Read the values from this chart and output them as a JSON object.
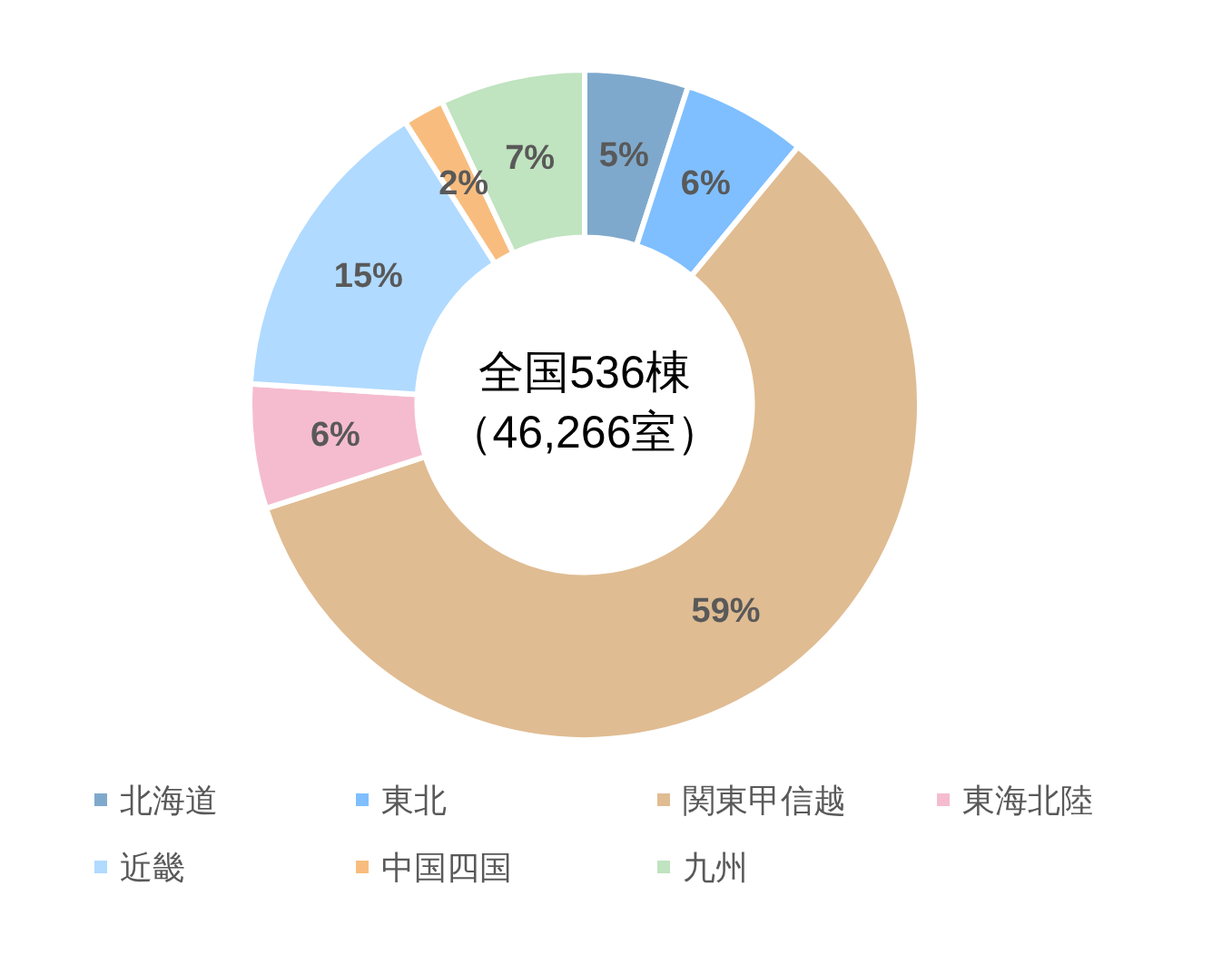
{
  "chart_data": {
    "type": "donut",
    "categories": [
      "北海道",
      "東北",
      "関東甲信越",
      "東海北陸",
      "近畿",
      "中国四国",
      "九州"
    ],
    "values": [
      5,
      6,
      59,
      6,
      15,
      2,
      7
    ],
    "colors": [
      "#7fa9cc",
      "#7fbfff",
      "#e0bc92",
      "#f5bccf",
      "#b0daff",
      "#f8bd7e",
      "#c0e3c0"
    ],
    "value_labels": [
      "5%",
      "6%",
      "59%",
      "6%",
      "15%",
      "2%",
      "7%"
    ],
    "annotations": [
      "全国536棟",
      "（46,266室）"
    ],
    "legend": "bottom"
  }
}
